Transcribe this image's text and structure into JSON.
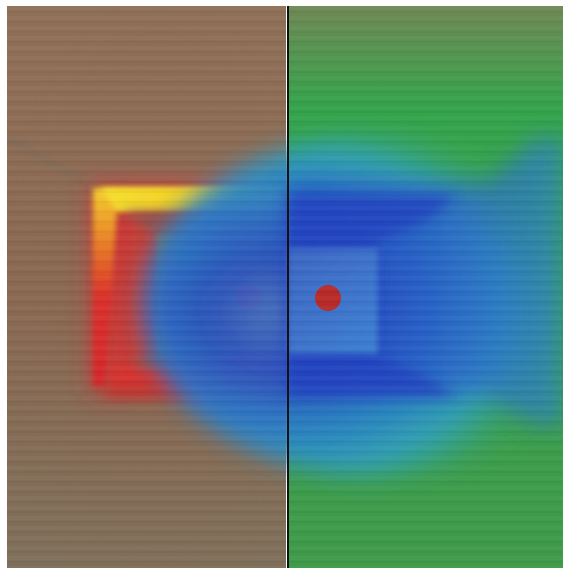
{
  "image": {
    "description_type": "split-panel color field visualization",
    "panels": [
      {
        "name": "left-panel",
        "palette": {
          "background": "#8e6a56",
          "frame_red": "#d3262a",
          "frame_yellow": "#f4cf2a",
          "inner_green": "#3aa34a",
          "dot": "#b82a2a"
        }
      },
      {
        "name": "right-panel",
        "palette": {
          "background": "#3aa34a",
          "frame_blue": "#2d4cc1",
          "frame_cyan": "#2c92cf",
          "inner_blue": "#3b74c8",
          "dot": "#b82a2a"
        }
      }
    ],
    "divider_color": "#111111"
  }
}
